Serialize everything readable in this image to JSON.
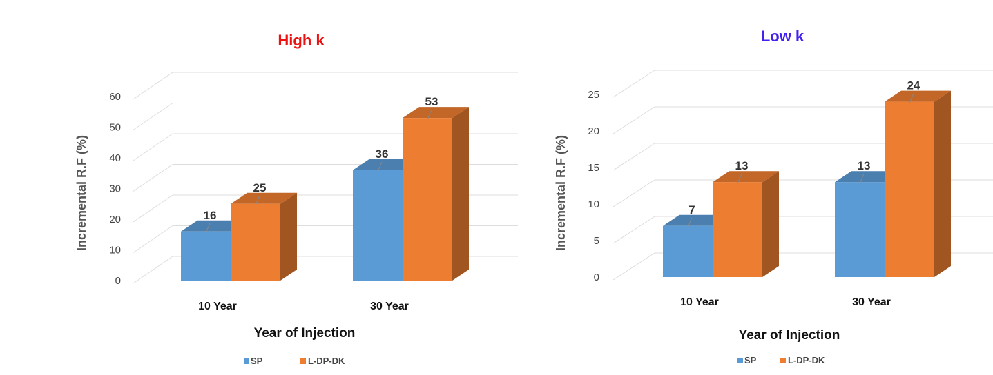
{
  "chart_data": [
    {
      "type": "bar",
      "title": "High k",
      "title_color": "#ee1111",
      "categories": [
        "10 Year",
        "30 Year"
      ],
      "series": [
        {
          "name": "SP",
          "values": [
            16,
            36
          ],
          "color": "#5b9bd5"
        },
        {
          "name": "L-DP-DK",
          "values": [
            25,
            53
          ],
          "color": "#ed7d31"
        }
      ],
      "xlabel": "Year of Injection",
      "ylabel": "Incremental R.F (%)",
      "ylim": [
        0,
        60
      ],
      "yticks": [
        0,
        10,
        20,
        30,
        40,
        50,
        60
      ],
      "grid": true,
      "legend": "bottom"
    },
    {
      "type": "bar",
      "title": "Low k",
      "title_color": "#4422ee",
      "categories": [
        "10 Year",
        "30 Year"
      ],
      "series": [
        {
          "name": "SP",
          "values": [
            7,
            13
          ],
          "color": "#5b9bd5"
        },
        {
          "name": "L-DP-DK",
          "values": [
            13,
            24
          ],
          "color": "#ed7d31"
        }
      ],
      "xlabel": "Year of Injection",
      "ylabel": "Incremental R.F (%)",
      "ylim": [
        0,
        25
      ],
      "yticks": [
        0,
        5,
        10,
        15,
        20,
        25
      ],
      "grid": true,
      "legend": "bottom"
    }
  ]
}
